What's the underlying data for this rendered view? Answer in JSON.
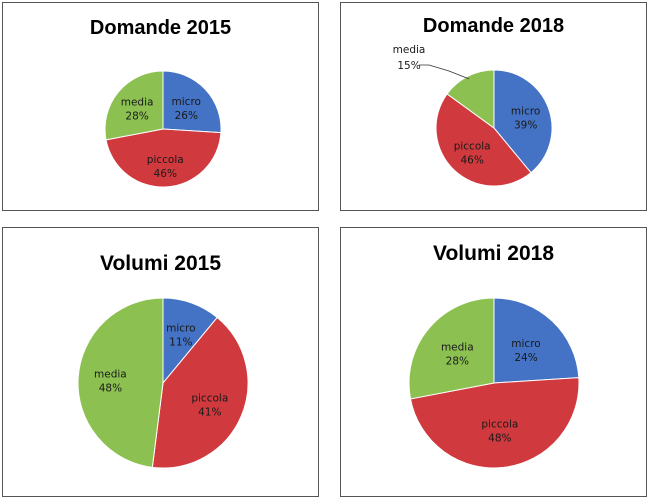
{
  "colors": {
    "micro": "#4472C4",
    "piccola": "#D0393E",
    "media": "#8CC152"
  },
  "chart_data": [
    {
      "type": "pie",
      "title": "Domande 2015",
      "categories": [
        "micro",
        "piccola",
        "media"
      ],
      "values": [
        26,
        46,
        28
      ],
      "labels": [
        "26%",
        "46%",
        "28%"
      ]
    },
    {
      "type": "pie",
      "title": "Domande 2018",
      "categories": [
        "micro",
        "piccola",
        "media"
      ],
      "values": [
        39,
        46,
        15
      ],
      "labels": [
        "39%",
        "46%",
        "15%"
      ]
    },
    {
      "type": "pie",
      "title": "Volumi 2015",
      "categories": [
        "micro",
        "piccola",
        "media"
      ],
      "values": [
        11,
        41,
        48
      ],
      "labels": [
        "11%",
        "41%",
        "48%"
      ]
    },
    {
      "type": "pie",
      "title": "Volumi 2018",
      "categories": [
        "micro",
        "piccola",
        "media"
      ],
      "values": [
        24,
        48,
        28
      ],
      "labels": [
        "24%",
        "48%",
        "28%"
      ]
    }
  ]
}
